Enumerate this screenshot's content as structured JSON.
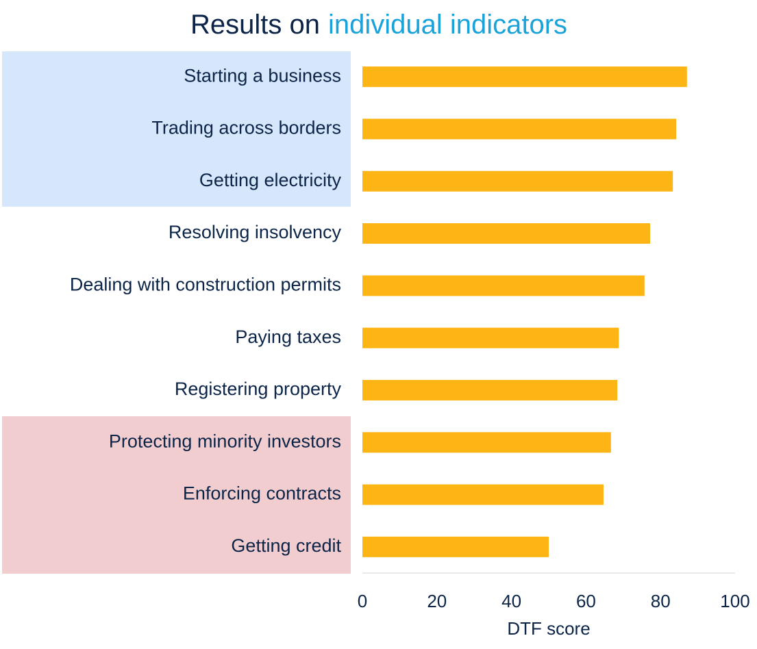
{
  "chart_data": {
    "type": "bar",
    "orientation": "horizontal",
    "title": [
      "Results on",
      "individual indicators"
    ],
    "title_colors": [
      "#0b2447",
      "#1aa3d9"
    ],
    "categories": [
      "Starting a business",
      "Trading across borders",
      "Getting electricity",
      "Resolving insolvency",
      "Dealing with construction permits",
      "Paying taxes",
      "Registering property",
      "Protecting minority investors",
      "Enforcing contracts",
      "Getting credit"
    ],
    "values": [
      87.1,
      84.2,
      83.3,
      77.2,
      75.7,
      68.8,
      68.4,
      66.7,
      64.7,
      50.0
    ],
    "color": "#fdb515",
    "xlim": [
      0,
      100
    ],
    "xticks": [
      0,
      20,
      40,
      60,
      80,
      100
    ],
    "xlabel": "DTF score",
    "grid": false
  }
}
